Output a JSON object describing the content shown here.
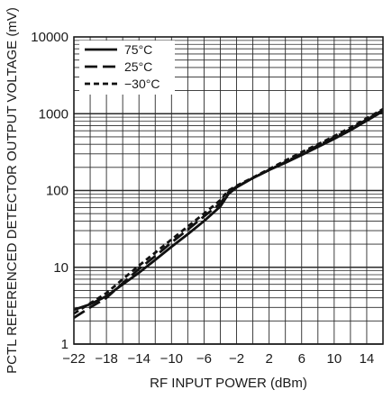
{
  "chart_data": {
    "type": "line",
    "xlabel": "RF INPUT POWER (dBm)",
    "ylabel": "PCTL REFERENCED DETECTOR OUTPUT VOLTAGE (mV)",
    "xlim": [
      -22,
      16
    ],
    "ylim": [
      1,
      10000
    ],
    "yscale": "log",
    "grid": true,
    "legend_position": "top-left",
    "x_ticks": [
      -22,
      -18,
      -14,
      -10,
      -6,
      -2,
      2,
      6,
      10,
      14
    ],
    "x_tick_labels": [
      "−22",
      "−18",
      "−14",
      "−10",
      "−6",
      "−2",
      "2",
      "6",
      "10",
      "14"
    ],
    "y_ticks": [
      1,
      10,
      100,
      1000,
      10000
    ],
    "y_tick_labels": [
      "1",
      "10",
      "100",
      "1000",
      "10000"
    ],
    "series": [
      {
        "name": "75°C",
        "dash": "solid",
        "x": [
          -22,
          -20,
          -18,
          -16,
          -14,
          -12,
          -10,
          -8,
          -6,
          -4,
          -3,
          -2,
          0,
          2,
          4,
          6,
          8,
          10,
          12,
          14,
          16
        ],
        "y": [
          2.8,
          3.3,
          4.2,
          6.0,
          8.5,
          12.5,
          18.5,
          27,
          40,
          62,
          90,
          110,
          145,
          185,
          230,
          290,
          370,
          470,
          610,
          810,
          1080
        ]
      },
      {
        "name": "25°C",
        "dash": "long-dash",
        "x": [
          -22,
          -20,
          -18,
          -16,
          -14,
          -12,
          -10,
          -8,
          -6,
          -4,
          -3,
          -2,
          0,
          2,
          4,
          6,
          8,
          10,
          12,
          14,
          16
        ],
        "y": [
          2.2,
          3.0,
          4.0,
          6.2,
          9.5,
          14,
          21,
          31,
          46,
          68,
          95,
          112,
          145,
          185,
          235,
          300,
          385,
          490,
          630,
          840,
          1120
        ]
      },
      {
        "name": "−30°C",
        "dash": "short-dash",
        "x": [
          -22,
          -20,
          -18,
          -16,
          -14,
          -12,
          -10,
          -8,
          -6,
          -4,
          -3,
          -2,
          0,
          2,
          4,
          6,
          8,
          10,
          12,
          14,
          16
        ],
        "y": [
          2.5,
          3.4,
          4.6,
          7.0,
          10.5,
          15.5,
          23,
          34,
          50,
          75,
          100,
          115,
          147,
          190,
          245,
          315,
          400,
          510,
          660,
          870,
          1150
        ]
      }
    ]
  }
}
